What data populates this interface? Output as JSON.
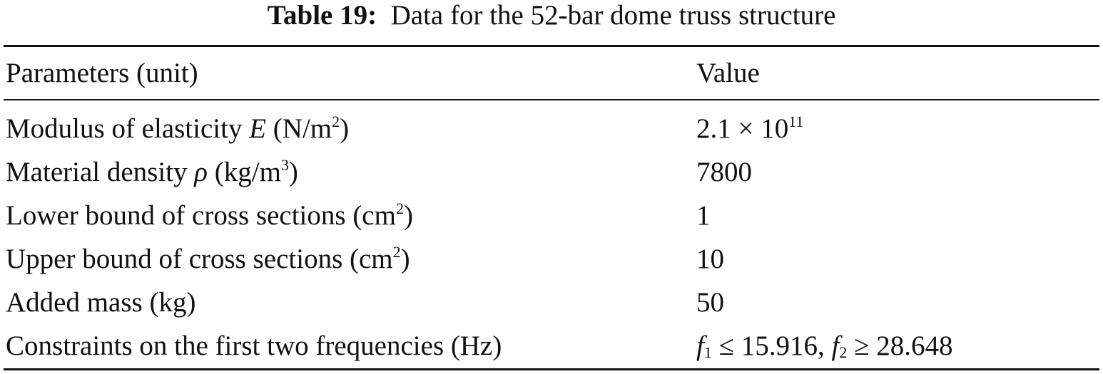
{
  "table": {
    "caption": {
      "label": "Table 19:",
      "text": "Data for the 52-bar dome truss structure"
    },
    "header": [
      "Parameters (unit)",
      "Value"
    ],
    "rows": [
      [
        [
          "Modulus of elasticity ",
          "E",
          " (N/m",
          "2",
          ")"
        ],
        [
          "2.1 × 10",
          "11"
        ]
      ],
      [
        [
          "Material density ",
          "ρ",
          " (kg/m",
          "3",
          ")"
        ],
        [
          "7800"
        ]
      ],
      [
        [
          "Lower bound of cross sections (cm",
          "2",
          ")"
        ],
        [
          "1"
        ]
      ],
      [
        [
          "Upper bound of cross sections (cm",
          "2",
          ")"
        ],
        [
          "10"
        ]
      ],
      [
        [
          "Added mass (kg)"
        ],
        [
          "50"
        ]
      ],
      [
        [
          "Constraints on the first two frequencies (Hz)"
        ],
        [
          "f",
          "1",
          " ≤ 15.916, ",
          "f",
          "2",
          " ≥ 28.648"
        ]
      ]
    ]
  }
}
